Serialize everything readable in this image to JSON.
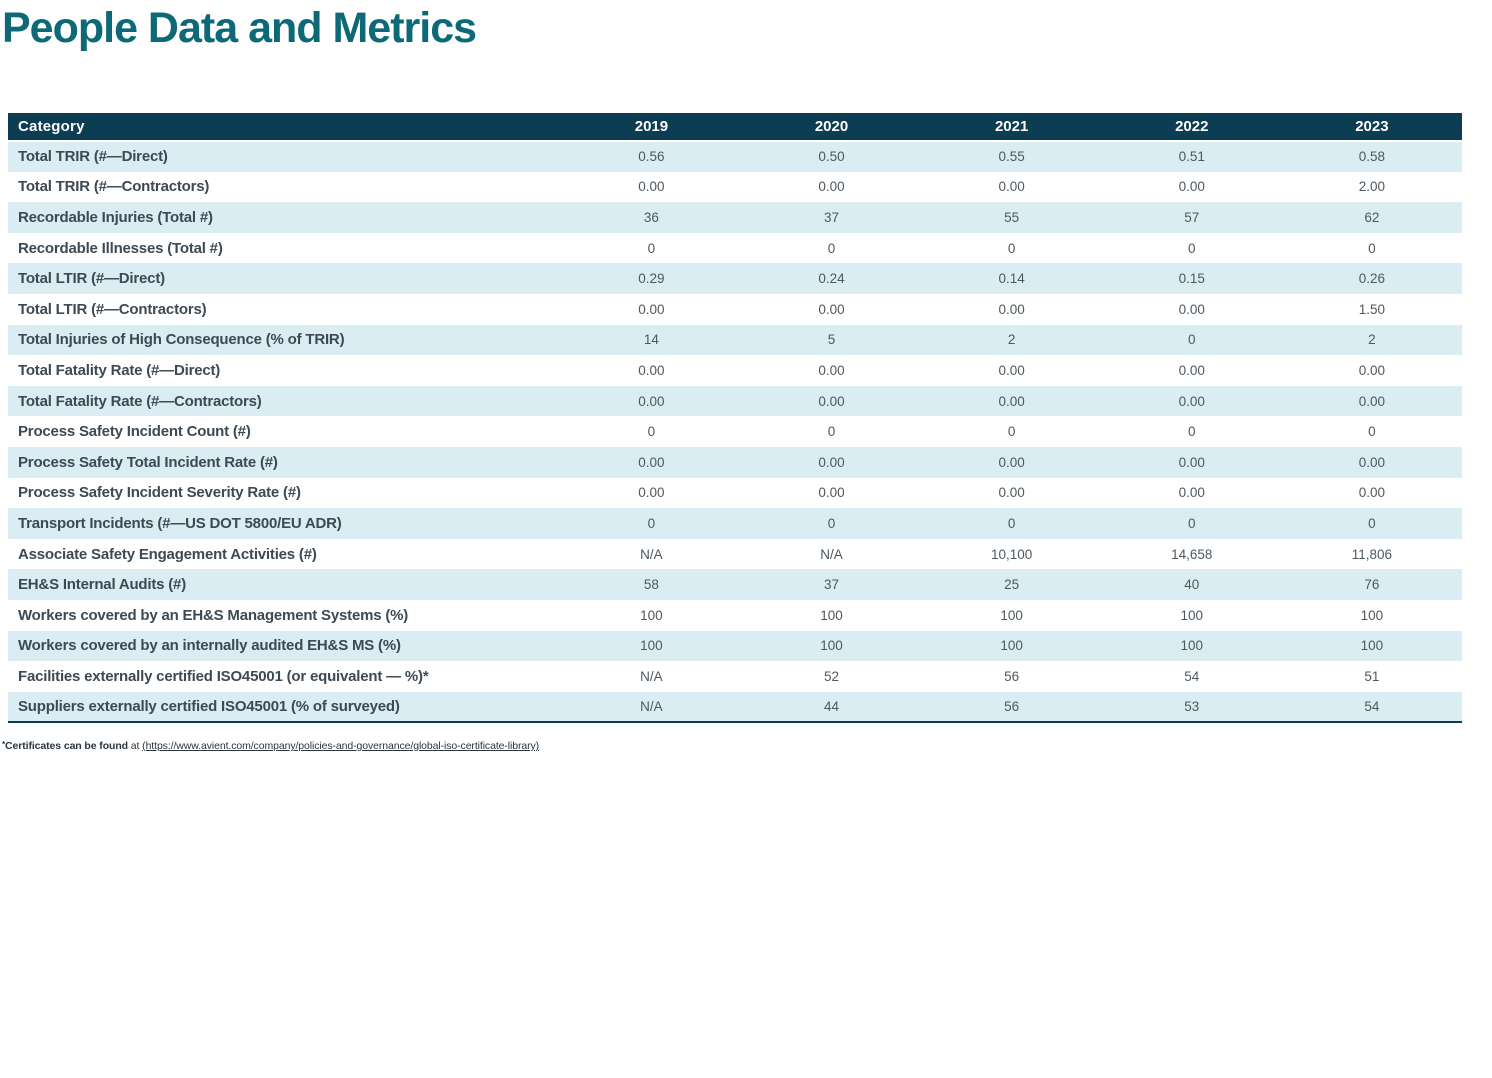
{
  "title": "People Data and Metrics",
  "colors": {
    "title": "#0e6977",
    "header_bg": "#0c3d52",
    "row_alt_bg": "#d9edf2",
    "row_bg": "#ffffff",
    "label_text": "#3d4a53",
    "value_text": "#4e585f",
    "footnote_text": "#2b3640"
  },
  "table": {
    "category_header": "Category",
    "year_headers": [
      "2019",
      "2020",
      "2021",
      "2022",
      "2023"
    ],
    "rows": [
      {
        "category": "Total TRIR (#—Direct)",
        "values": [
          "0.56",
          "0.50",
          "0.55",
          "0.51",
          "0.58"
        ]
      },
      {
        "category": "Total TRIR (#—Contractors)",
        "values": [
          "0.00",
          "0.00",
          "0.00",
          "0.00",
          "2.00"
        ]
      },
      {
        "category": "Recordable Injuries (Total #)",
        "values": [
          "36",
          "37",
          "55",
          "57",
          "62"
        ]
      },
      {
        "category": "Recordable Illnesses (Total #)",
        "values": [
          "0",
          "0",
          "0",
          "0",
          "0"
        ]
      },
      {
        "category": "Total LTIR (#—Direct)",
        "values": [
          "0.29",
          "0.24",
          "0.14",
          "0.15",
          "0.26"
        ]
      },
      {
        "category": "Total LTIR (#—Contractors)",
        "values": [
          "0.00",
          "0.00",
          "0.00",
          "0.00",
          "1.50"
        ]
      },
      {
        "category": "Total Injuries of High Consequence (% of TRIR)",
        "values": [
          "14",
          "5",
          "2",
          "0",
          "2"
        ]
      },
      {
        "category": "Total Fatality Rate (#—Direct)",
        "values": [
          "0.00",
          "0.00",
          "0.00",
          "0.00",
          "0.00"
        ]
      },
      {
        "category": "Total Fatality Rate (#—Contractors)",
        "values": [
          "0.00",
          "0.00",
          "0.00",
          "0.00",
          "0.00"
        ]
      },
      {
        "category": "Process Safety Incident Count (#)",
        "values": [
          "0",
          "0",
          "0",
          "0",
          "0"
        ]
      },
      {
        "category": "Process Safety Total Incident Rate (#)",
        "values": [
          "0.00",
          "0.00",
          "0.00",
          "0.00",
          "0.00"
        ]
      },
      {
        "category": "Process Safety Incident Severity Rate (#)",
        "values": [
          "0.00",
          "0.00",
          "0.00",
          "0.00",
          "0.00"
        ]
      },
      {
        "category": "Transport Incidents (#—US DOT 5800/EU ADR)",
        "values": [
          "0",
          "0",
          "0",
          "0",
          "0"
        ]
      },
      {
        "category": "Associate Safety Engagement Activities (#)",
        "values": [
          "N/A",
          "N/A",
          "10,100",
          "14,658",
          "11,806"
        ]
      },
      {
        "category": "EH&S Internal Audits (#)",
        "values": [
          "58",
          "37",
          "25",
          "40",
          "76"
        ]
      },
      {
        "category": "Workers covered by an EH&S Management Systems (%)",
        "values": [
          "100",
          "100",
          "100",
          "100",
          "100"
        ]
      },
      {
        "category": "Workers covered by an internally audited EH&S MS (%)",
        "values": [
          "100",
          "100",
          "100",
          "100",
          "100"
        ]
      },
      {
        "category": "Facilities externally certified ISO45001 (or equivalent — %)*",
        "values": [
          "N/A",
          "52",
          "56",
          "54",
          "51"
        ]
      },
      {
        "category": "Suppliers externally certified ISO45001 (% of surveyed)",
        "values": [
          "N/A",
          "44",
          "56",
          "53",
          "54"
        ]
      }
    ]
  },
  "footnote": {
    "asterisk": "*",
    "lead": "Certificates can be found",
    "mid": " at ",
    "link": "(https://www.avient.com/company/policies-and-governance/global-iso-certificate-library)"
  }
}
